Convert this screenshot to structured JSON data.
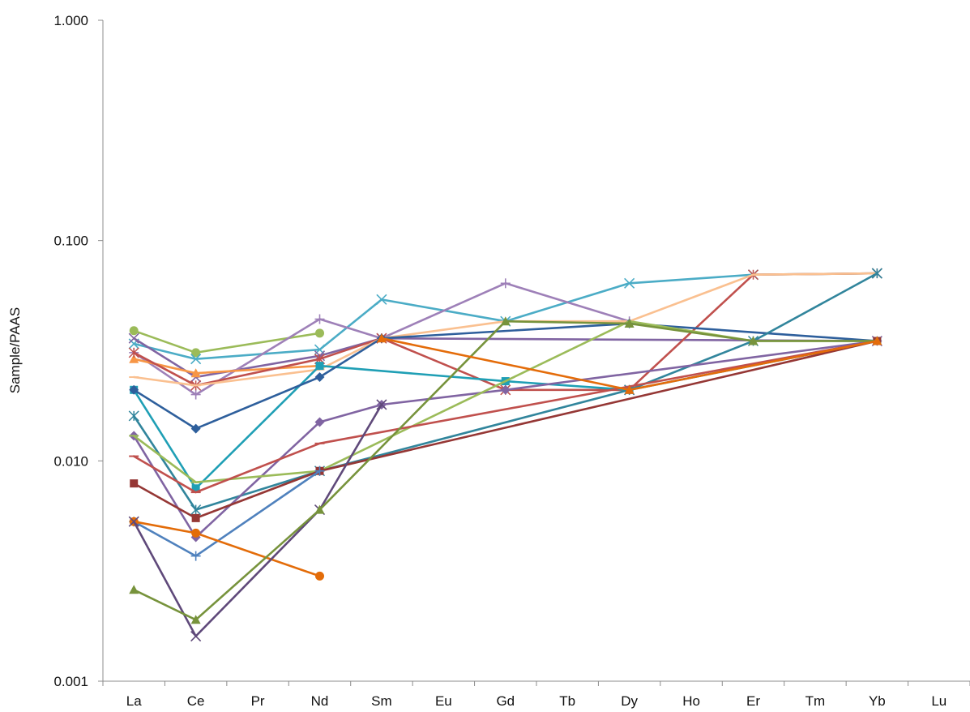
{
  "chart_data": {
    "type": "line",
    "title": "",
    "xlabel": "",
    "ylabel": "Sample/PAAS",
    "yscale": "log",
    "ylim": [
      0.001,
      1.0
    ],
    "yticks": [
      0.001,
      0.01,
      0.1,
      1.0
    ],
    "ytick_labels": [
      "0.001",
      "0.010",
      "0.100",
      "1.000"
    ],
    "categories": [
      "La",
      "Ce",
      "Pr",
      "Nd",
      "Sm",
      "Eu",
      "Gd",
      "Tb",
      "Dy",
      "Ho",
      "Er",
      "Tm",
      "Yb",
      "Lu"
    ],
    "grid": false,
    "legend": "none",
    "series": [
      {
        "color": "#9bbb59",
        "marker": "circle",
        "values": [
          0.039,
          0.031,
          null,
          0.038,
          null,
          null,
          null,
          null,
          null,
          null,
          null,
          null,
          null,
          null
        ]
      },
      {
        "color": "#4bacc6",
        "marker": "x",
        "values": [
          0.034,
          0.029,
          null,
          0.032,
          0.054,
          null,
          0.043,
          null,
          0.064,
          null,
          0.07,
          null,
          0.071,
          null
        ]
      },
      {
        "color": "#8064a2",
        "marker": "x",
        "values": [
          0.036,
          0.024,
          null,
          0.03,
          0.036,
          null,
          null,
          null,
          null,
          null,
          null,
          null,
          0.035,
          null
        ]
      },
      {
        "color": "#9e80b8",
        "marker": "plus",
        "values": [
          0.031,
          0.02,
          null,
          0.044,
          0.036,
          null,
          0.064,
          null,
          0.043,
          null,
          null,
          null,
          null,
          null
        ]
      },
      {
        "color": "#f79646",
        "marker": "triangle",
        "values": [
          0.029,
          0.025,
          null,
          0.027,
          null,
          null,
          null,
          null,
          null,
          null,
          null,
          null,
          null,
          null
        ]
      },
      {
        "color": "#c0504d",
        "marker": "asterisk",
        "values": [
          0.031,
          0.022,
          null,
          0.029,
          0.036,
          null,
          0.021,
          null,
          0.021,
          null,
          0.07,
          null,
          0.071,
          null
        ]
      },
      {
        "color": "#fac090",
        "marker": "dash",
        "values": [
          0.024,
          0.022,
          null,
          0.026,
          0.036,
          null,
          0.043,
          null,
          0.043,
          null,
          0.07,
          null,
          0.071,
          null
        ]
      },
      {
        "color": "#1f9fb5",
        "marker": "square",
        "values": [
          0.021,
          0.0075,
          null,
          0.027,
          null,
          null,
          0.023,
          null,
          0.021,
          null,
          null,
          null,
          0.035,
          null
        ]
      },
      {
        "color": "#2e5f9c",
        "marker": "diamond",
        "values": [
          0.021,
          0.014,
          null,
          0.024,
          0.036,
          null,
          null,
          null,
          0.042,
          null,
          null,
          null,
          0.035,
          null
        ]
      },
      {
        "color": "#31859c",
        "marker": "asterisk",
        "values": [
          0.016,
          0.006,
          null,
          0.009,
          null,
          null,
          null,
          null,
          0.021,
          null,
          0.035,
          null,
          0.071,
          null
        ]
      },
      {
        "color": "#8064a2",
        "marker": "diamond",
        "values": [
          0.013,
          0.0045,
          null,
          0.015,
          0.018,
          null,
          0.021,
          null,
          null,
          null,
          null,
          null,
          0.035,
          null
        ]
      },
      {
        "color": "#9bbb59",
        "marker": "dash",
        "values": [
          0.013,
          0.008,
          null,
          0.009,
          null,
          null,
          null,
          null,
          0.043,
          null,
          0.035,
          null,
          0.035,
          null
        ]
      },
      {
        "color": "#c0504d",
        "marker": "dash",
        "values": [
          0.0105,
          0.0072,
          null,
          0.012,
          null,
          null,
          null,
          null,
          null,
          null,
          null,
          null,
          0.035,
          null
        ]
      },
      {
        "color": "#953735",
        "marker": "square",
        "values": [
          0.0079,
          0.0055,
          null,
          0.009,
          null,
          null,
          null,
          null,
          null,
          null,
          null,
          null,
          0.035,
          null
        ]
      },
      {
        "color": "#4f81bd",
        "marker": "plus",
        "values": [
          0.0053,
          0.0037,
          null,
          0.009,
          null,
          null,
          null,
          null,
          null,
          null,
          null,
          null,
          null,
          null
        ]
      },
      {
        "color": "#e36c09",
        "marker": "circle",
        "values": [
          0.0053,
          0.0047,
          null,
          0.003,
          null,
          null,
          null,
          null,
          null,
          null,
          null,
          null,
          null,
          null
        ]
      },
      {
        "color": "#5f497a",
        "marker": "x",
        "values": [
          0.0053,
          0.0016,
          null,
          0.006,
          0.018,
          null,
          null,
          null,
          null,
          null,
          null,
          null,
          null,
          null
        ]
      },
      {
        "color": "#77933c",
        "marker": "triangle",
        "values": [
          0.0026,
          0.0019,
          null,
          0.006,
          null,
          null,
          0.043,
          null,
          0.042,
          null,
          0.035,
          null,
          0.035,
          null
        ]
      },
      {
        "color": "#e46c0a",
        "marker": "triangle",
        "values": [
          null,
          null,
          null,
          null,
          0.036,
          null,
          null,
          null,
          0.021,
          null,
          null,
          null,
          0.035,
          null
        ]
      }
    ]
  }
}
